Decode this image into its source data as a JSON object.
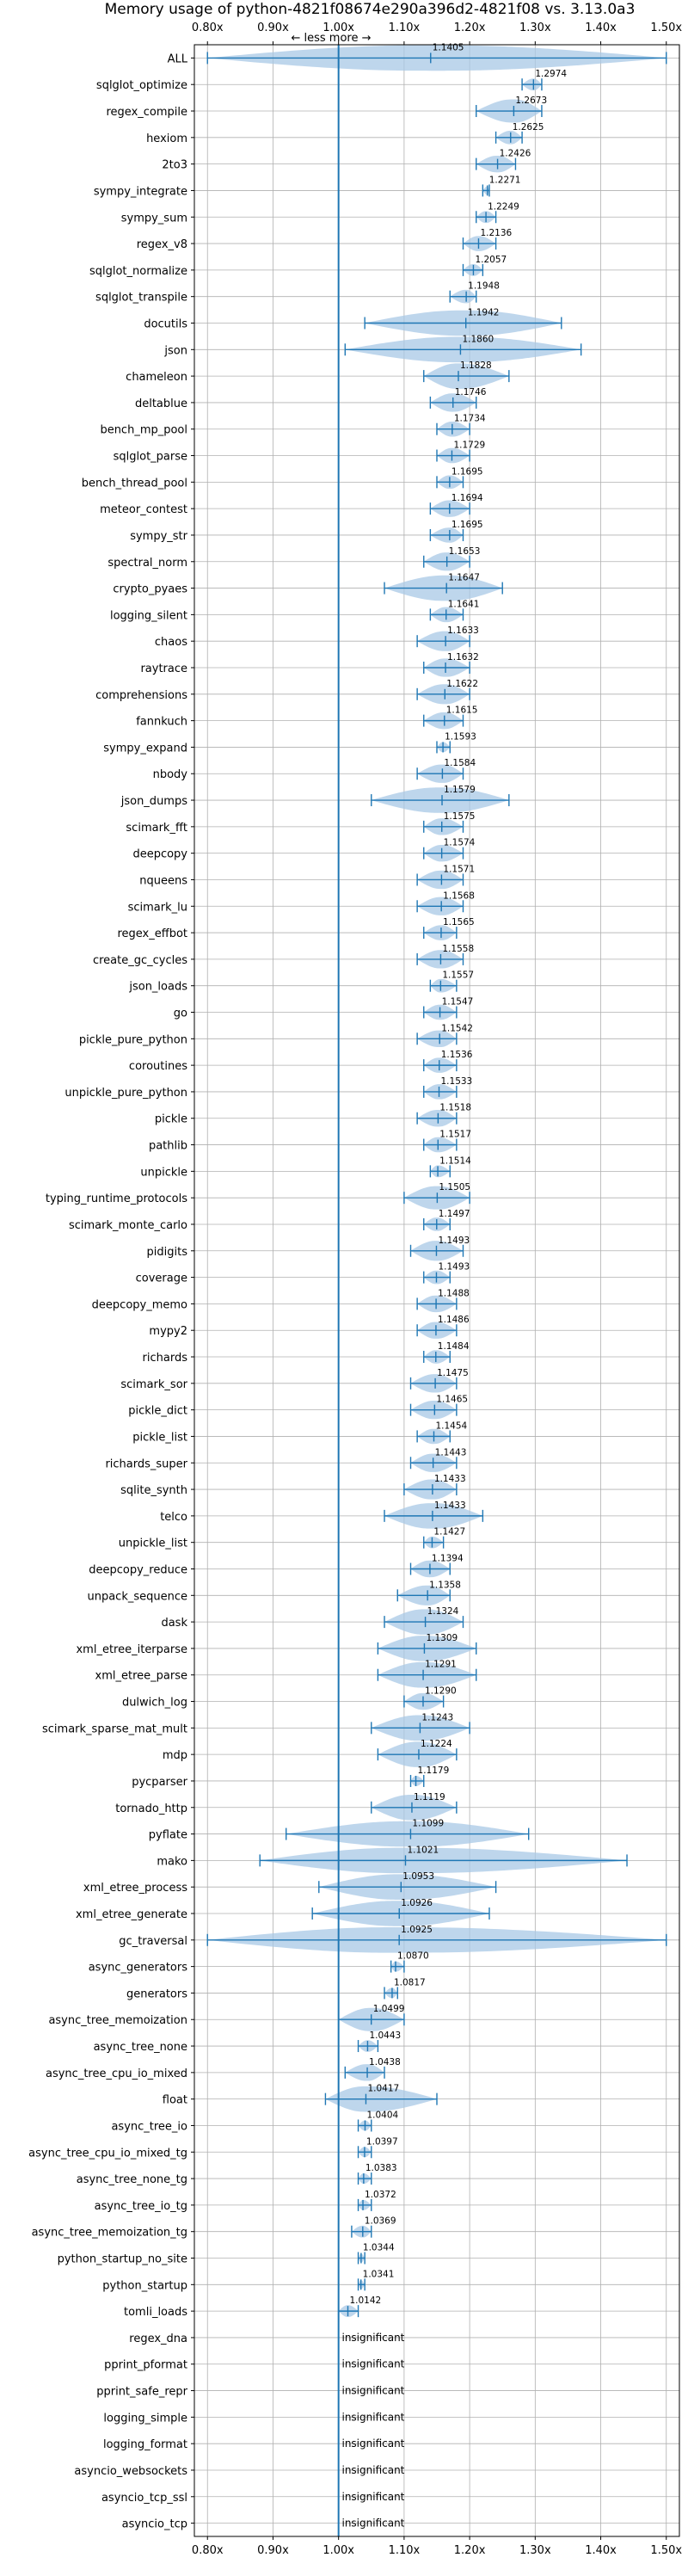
{
  "chart_data": {
    "type": "violin",
    "title": "Memory usage of python-4821f08674e290a396d2-4821f08 vs. 3.13.0a3",
    "axis_direction_note": "← less   more →",
    "xlim": [
      0.78,
      1.52
    ],
    "x_ticks": [
      {
        "value": 0.8,
        "label": "0.80x"
      },
      {
        "value": 0.9,
        "label": "0.90x"
      },
      {
        "value": 1.0,
        "label": "1.00x"
      },
      {
        "value": 1.1,
        "label": "1.10x"
      },
      {
        "value": 1.2,
        "label": "1.20x"
      },
      {
        "value": 1.3,
        "label": "1.30x"
      },
      {
        "value": 1.4,
        "label": "1.40x"
      },
      {
        "value": 1.5,
        "label": "1.50x"
      }
    ],
    "reference_line": 1.0,
    "grid": true,
    "colors": {
      "violin": "#a8c8e6",
      "line": "#1f77b4"
    },
    "insignificant_label": "insignificant",
    "benchmarks": [
      {
        "name": "ALL",
        "mean": 1.1405,
        "label": "1.1405",
        "min": 0.8,
        "max": 1.5
      },
      {
        "name": "sqlglot_optimize",
        "mean": 1.2974,
        "label": "1.2974",
        "min": 1.28,
        "max": 1.31
      },
      {
        "name": "regex_compile",
        "mean": 1.2673,
        "label": "1.2673",
        "min": 1.21,
        "max": 1.31
      },
      {
        "name": "hexiom",
        "mean": 1.2625,
        "label": "1.2625",
        "min": 1.24,
        "max": 1.28
      },
      {
        "name": "2to3",
        "mean": 1.2426,
        "label": "1.2426",
        "min": 1.21,
        "max": 1.27
      },
      {
        "name": "sympy_integrate",
        "mean": 1.2271,
        "label": "1.2271",
        "min": 1.22,
        "max": 1.23
      },
      {
        "name": "sympy_sum",
        "mean": 1.2249,
        "label": "1.2249",
        "min": 1.21,
        "max": 1.24
      },
      {
        "name": "regex_v8",
        "mean": 1.2136,
        "label": "1.2136",
        "min": 1.19,
        "max": 1.24
      },
      {
        "name": "sqlglot_normalize",
        "mean": 1.2057,
        "label": "1.2057",
        "min": 1.19,
        "max": 1.22
      },
      {
        "name": "sqlglot_transpile",
        "mean": 1.1948,
        "label": "1.1948",
        "min": 1.17,
        "max": 1.21
      },
      {
        "name": "docutils",
        "mean": 1.1942,
        "label": "1.1942",
        "min": 1.04,
        "max": 1.34
      },
      {
        "name": "json",
        "mean": 1.186,
        "label": "1.1860",
        "min": 1.01,
        "max": 1.37
      },
      {
        "name": "chameleon",
        "mean": 1.1828,
        "label": "1.1828",
        "min": 1.13,
        "max": 1.26
      },
      {
        "name": "deltablue",
        "mean": 1.1746,
        "label": "1.1746",
        "min": 1.14,
        "max": 1.21
      },
      {
        "name": "bench_mp_pool",
        "mean": 1.1734,
        "label": "1.1734",
        "min": 1.15,
        "max": 1.2
      },
      {
        "name": "sqlglot_parse",
        "mean": 1.1729,
        "label": "1.1729",
        "min": 1.15,
        "max": 1.2
      },
      {
        "name": "bench_thread_pool",
        "mean": 1.1695,
        "label": "1.1695",
        "min": 1.15,
        "max": 1.19
      },
      {
        "name": "meteor_contest",
        "mean": 1.1694,
        "label": "1.1694",
        "min": 1.14,
        "max": 1.2
      },
      {
        "name": "sympy_str",
        "mean": 1.1695,
        "label": "1.1695",
        "min": 1.14,
        "max": 1.19
      },
      {
        "name": "spectral_norm",
        "mean": 1.1653,
        "label": "1.1653",
        "min": 1.13,
        "max": 1.2
      },
      {
        "name": "crypto_pyaes",
        "mean": 1.1647,
        "label": "1.1647",
        "min": 1.07,
        "max": 1.25
      },
      {
        "name": "logging_silent",
        "mean": 1.1641,
        "label": "1.1641",
        "min": 1.14,
        "max": 1.19
      },
      {
        "name": "chaos",
        "mean": 1.1633,
        "label": "1.1633",
        "min": 1.12,
        "max": 1.2
      },
      {
        "name": "raytrace",
        "mean": 1.1632,
        "label": "1.1632",
        "min": 1.13,
        "max": 1.2
      },
      {
        "name": "comprehensions",
        "mean": 1.1622,
        "label": "1.1622",
        "min": 1.12,
        "max": 1.2
      },
      {
        "name": "fannkuch",
        "mean": 1.1615,
        "label": "1.1615",
        "min": 1.13,
        "max": 1.19
      },
      {
        "name": "sympy_expand",
        "mean": 1.1593,
        "label": "1.1593",
        "min": 1.15,
        "max": 1.17
      },
      {
        "name": "nbody",
        "mean": 1.1584,
        "label": "1.1584",
        "min": 1.12,
        "max": 1.19
      },
      {
        "name": "json_dumps",
        "mean": 1.1579,
        "label": "1.1579",
        "min": 1.05,
        "max": 1.26
      },
      {
        "name": "scimark_fft",
        "mean": 1.1575,
        "label": "1.1575",
        "min": 1.13,
        "max": 1.19
      },
      {
        "name": "deepcopy",
        "mean": 1.1574,
        "label": "1.1574",
        "min": 1.13,
        "max": 1.19
      },
      {
        "name": "nqueens",
        "mean": 1.1571,
        "label": "1.1571",
        "min": 1.12,
        "max": 1.19
      },
      {
        "name": "scimark_lu",
        "mean": 1.1568,
        "label": "1.1568",
        "min": 1.12,
        "max": 1.19
      },
      {
        "name": "regex_effbot",
        "mean": 1.1565,
        "label": "1.1565",
        "min": 1.13,
        "max": 1.18
      },
      {
        "name": "create_gc_cycles",
        "mean": 1.1558,
        "label": "1.1558",
        "min": 1.12,
        "max": 1.19
      },
      {
        "name": "json_loads",
        "mean": 1.1557,
        "label": "1.1557",
        "min": 1.14,
        "max": 1.18
      },
      {
        "name": "go",
        "mean": 1.1547,
        "label": "1.1547",
        "min": 1.13,
        "max": 1.18
      },
      {
        "name": "pickle_pure_python",
        "mean": 1.1542,
        "label": "1.1542",
        "min": 1.12,
        "max": 1.18
      },
      {
        "name": "coroutines",
        "mean": 1.1536,
        "label": "1.1536",
        "min": 1.13,
        "max": 1.18
      },
      {
        "name": "unpickle_pure_python",
        "mean": 1.1533,
        "label": "1.1533",
        "min": 1.13,
        "max": 1.18
      },
      {
        "name": "pickle",
        "mean": 1.1518,
        "label": "1.1518",
        "min": 1.12,
        "max": 1.18
      },
      {
        "name": "pathlib",
        "mean": 1.1517,
        "label": "1.1517",
        "min": 1.13,
        "max": 1.18
      },
      {
        "name": "unpickle",
        "mean": 1.1514,
        "label": "1.1514",
        "min": 1.14,
        "max": 1.17
      },
      {
        "name": "typing_runtime_protocols",
        "mean": 1.1505,
        "label": "1.1505",
        "min": 1.1,
        "max": 1.2
      },
      {
        "name": "scimark_monte_carlo",
        "mean": 1.1497,
        "label": "1.1497",
        "min": 1.13,
        "max": 1.17
      },
      {
        "name": "pidigits",
        "mean": 1.1493,
        "label": "1.1493",
        "min": 1.11,
        "max": 1.19
      },
      {
        "name": "coverage",
        "mean": 1.1493,
        "label": "1.1493",
        "min": 1.13,
        "max": 1.17
      },
      {
        "name": "deepcopy_memo",
        "mean": 1.1488,
        "label": "1.1488",
        "min": 1.12,
        "max": 1.18
      },
      {
        "name": "mypy2",
        "mean": 1.1486,
        "label": "1.1486",
        "min": 1.12,
        "max": 1.18
      },
      {
        "name": "richards",
        "mean": 1.1484,
        "label": "1.1484",
        "min": 1.13,
        "max": 1.17
      },
      {
        "name": "scimark_sor",
        "mean": 1.1475,
        "label": "1.1475",
        "min": 1.11,
        "max": 1.18
      },
      {
        "name": "pickle_dict",
        "mean": 1.1465,
        "label": "1.1465",
        "min": 1.11,
        "max": 1.18
      },
      {
        "name": "pickle_list",
        "mean": 1.1454,
        "label": "1.1454",
        "min": 1.12,
        "max": 1.17
      },
      {
        "name": "richards_super",
        "mean": 1.1443,
        "label": "1.1443",
        "min": 1.11,
        "max": 1.18
      },
      {
        "name": "sqlite_synth",
        "mean": 1.1433,
        "label": "1.1433",
        "min": 1.1,
        "max": 1.18
      },
      {
        "name": "telco",
        "mean": 1.1433,
        "label": "1.1433",
        "min": 1.07,
        "max": 1.22
      },
      {
        "name": "unpickle_list",
        "mean": 1.1427,
        "label": "1.1427",
        "min": 1.13,
        "max": 1.16
      },
      {
        "name": "deepcopy_reduce",
        "mean": 1.1394,
        "label": "1.1394",
        "min": 1.11,
        "max": 1.17
      },
      {
        "name": "unpack_sequence",
        "mean": 1.1358,
        "label": "1.1358",
        "min": 1.09,
        "max": 1.17
      },
      {
        "name": "dask",
        "mean": 1.1324,
        "label": "1.1324",
        "min": 1.07,
        "max": 1.19
      },
      {
        "name": "xml_etree_iterparse",
        "mean": 1.1309,
        "label": "1.1309",
        "min": 1.06,
        "max": 1.21
      },
      {
        "name": "xml_etree_parse",
        "mean": 1.1291,
        "label": "1.1291",
        "min": 1.06,
        "max": 1.21
      },
      {
        "name": "dulwich_log",
        "mean": 1.129,
        "label": "1.1290",
        "min": 1.1,
        "max": 1.16
      },
      {
        "name": "scimark_sparse_mat_mult",
        "mean": 1.1243,
        "label": "1.1243",
        "min": 1.05,
        "max": 1.2
      },
      {
        "name": "mdp",
        "mean": 1.1224,
        "label": "1.1224",
        "min": 1.06,
        "max": 1.18
      },
      {
        "name": "pycparser",
        "mean": 1.1179,
        "label": "1.1179",
        "min": 1.11,
        "max": 1.13
      },
      {
        "name": "tornado_http",
        "mean": 1.1119,
        "label": "1.1119",
        "min": 1.05,
        "max": 1.18
      },
      {
        "name": "pyflate",
        "mean": 1.1099,
        "label": "1.1099",
        "min": 0.92,
        "max": 1.29
      },
      {
        "name": "mako",
        "mean": 1.1021,
        "label": "1.1021",
        "min": 0.88,
        "max": 1.44
      },
      {
        "name": "xml_etree_process",
        "mean": 1.0953,
        "label": "1.0953",
        "min": 0.97,
        "max": 1.24
      },
      {
        "name": "xml_etree_generate",
        "mean": 1.0926,
        "label": "1.0926",
        "min": 0.96,
        "max": 1.23
      },
      {
        "name": "gc_traversal",
        "mean": 1.0925,
        "label": "1.0925",
        "min": 0.8,
        "max": 1.5
      },
      {
        "name": "async_generators",
        "mean": 1.087,
        "label": "1.0870",
        "min": 1.08,
        "max": 1.1
      },
      {
        "name": "generators",
        "mean": 1.0817,
        "label": "1.0817",
        "min": 1.07,
        "max": 1.09
      },
      {
        "name": "async_tree_memoization",
        "mean": 1.0499,
        "label": "1.0499",
        "min": 1.0,
        "max": 1.1
      },
      {
        "name": "async_tree_none",
        "mean": 1.0443,
        "label": "1.0443",
        "min": 1.03,
        "max": 1.06
      },
      {
        "name": "async_tree_cpu_io_mixed",
        "mean": 1.0438,
        "label": "1.0438",
        "min": 1.01,
        "max": 1.07
      },
      {
        "name": "float",
        "mean": 1.0417,
        "label": "1.0417",
        "min": 0.98,
        "max": 1.15
      },
      {
        "name": "async_tree_io",
        "mean": 1.0404,
        "label": "1.0404",
        "min": 1.03,
        "max": 1.05
      },
      {
        "name": "async_tree_cpu_io_mixed_tg",
        "mean": 1.0397,
        "label": "1.0397",
        "min": 1.03,
        "max": 1.05
      },
      {
        "name": "async_tree_none_tg",
        "mean": 1.0383,
        "label": "1.0383",
        "min": 1.03,
        "max": 1.05
      },
      {
        "name": "async_tree_io_tg",
        "mean": 1.0372,
        "label": "1.0372",
        "min": 1.03,
        "max": 1.05
      },
      {
        "name": "async_tree_memoization_tg",
        "mean": 1.0369,
        "label": "1.0369",
        "min": 1.02,
        "max": 1.05
      },
      {
        "name": "python_startup_no_site",
        "mean": 1.0344,
        "label": "1.0344",
        "min": 1.03,
        "max": 1.04
      },
      {
        "name": "python_startup",
        "mean": 1.0341,
        "label": "1.0341",
        "min": 1.03,
        "max": 1.04
      },
      {
        "name": "tomli_loads",
        "mean": 1.0142,
        "label": "1.0142",
        "min": 1.0,
        "max": 1.03
      },
      {
        "name": "regex_dna",
        "insignificant": true
      },
      {
        "name": "pprint_pformat",
        "insignificant": true
      },
      {
        "name": "pprint_safe_repr",
        "insignificant": true
      },
      {
        "name": "logging_simple",
        "insignificant": true
      },
      {
        "name": "logging_format",
        "insignificant": true
      },
      {
        "name": "asyncio_websockets",
        "insignificant": true
      },
      {
        "name": "asyncio_tcp_ssl",
        "insignificant": true
      },
      {
        "name": "asyncio_tcp",
        "insignificant": true
      }
    ]
  }
}
